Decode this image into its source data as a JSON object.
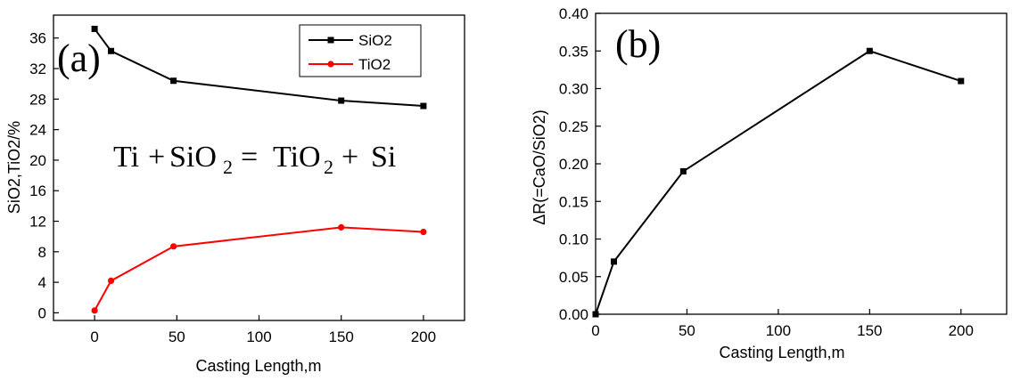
{
  "chart_data": [
    {
      "type": "line",
      "panel_label": "(a)",
      "xlabel": "Casting Length,m",
      "ylabel": "SiO2,TiO2/%",
      "xlim": [
        -25,
        225
      ],
      "ylim": [
        -1,
        39
      ],
      "xticks": [
        "0",
        "50",
        "100",
        "150",
        "200"
      ],
      "yticks": [
        "0",
        "4",
        "8",
        "12",
        "16",
        "20",
        "24",
        "28",
        "32",
        "36"
      ],
      "legend_position": "top-right",
      "equation": {
        "lhs1": "Ti",
        "plus1": "+",
        "lhs2": "SiO",
        "sub_a": "2",
        "equals": "=",
        "rhs1": "TiO",
        "sub_b": "2",
        "plus2": "+",
        "rhs2": "Si"
      },
      "series": [
        {
          "name": "SiO2",
          "color": "#000000",
          "marker": "square",
          "x": [
            0,
            10,
            48,
            150,
            200
          ],
          "y": [
            37.2,
            34.3,
            30.4,
            27.8,
            27.1
          ]
        },
        {
          "name": "TiO2",
          "color": "#ff0000",
          "marker": "circle",
          "x": [
            0,
            10,
            48,
            150,
            200
          ],
          "y": [
            0.3,
            4.2,
            8.7,
            11.2,
            10.6
          ]
        }
      ]
    },
    {
      "type": "line",
      "panel_label": "(b)",
      "xlabel": "Casting Length,m",
      "ylabel": "ΔR(=CaO/SiO2)",
      "xlim": [
        0,
        225
      ],
      "ylim": [
        0,
        0.4
      ],
      "xticks": [
        "0",
        "50",
        "100",
        "150",
        "200"
      ],
      "yticks": [
        "0.00",
        "0.05",
        "0.10",
        "0.15",
        "0.20",
        "0.25",
        "0.30",
        "0.35",
        "0.40"
      ],
      "series": [
        {
          "color": "#000000",
          "marker": "square",
          "x": [
            0,
            10,
            48,
            150,
            200
          ],
          "y": [
            0.0,
            0.07,
            0.19,
            0.35,
            0.31
          ]
        }
      ]
    }
  ]
}
